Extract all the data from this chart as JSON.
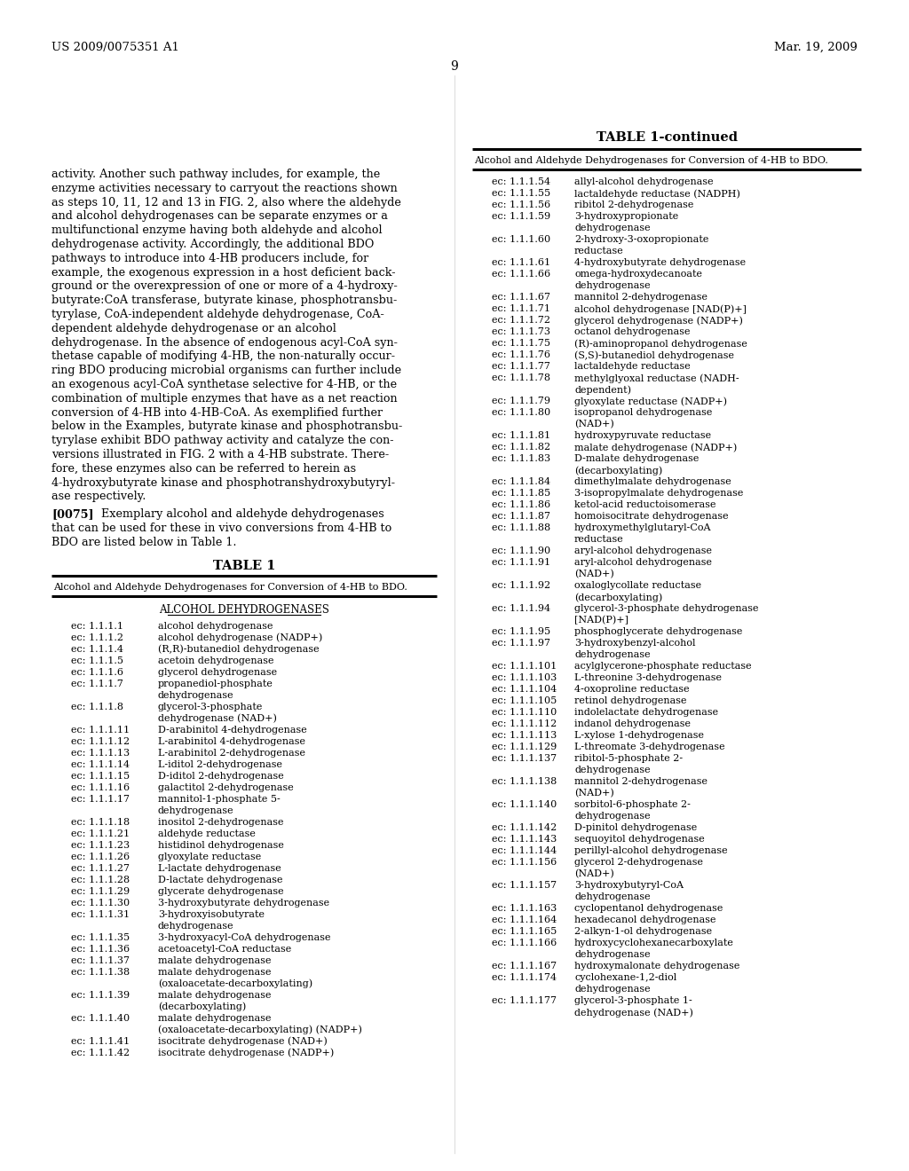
{
  "page_header_left": "US 2009/0075351 A1",
  "page_header_right": "Mar. 19, 2009",
  "page_number": "9",
  "body_text": [
    "activity. Another such pathway includes, for example, the",
    "enzyme activities necessary to carryout the reactions shown",
    "as steps 10, 11, 12 and 13 in FIG. 2, also where the aldehyde",
    "and alcohol dehydrogenases can be separate enzymes or a",
    "multifunctional enzyme having both aldehyde and alcohol",
    "dehydrogenase activity. Accordingly, the additional BDO",
    "pathways to introduce into 4-HB producers include, for",
    "example, the exogenous expression in a host deficient back-",
    "ground or the overexpression of one or more of a 4-hydroxy-",
    "butyrate:CoA transferase, butyrate kinase, phosphotransbu-",
    "tyrylase, CoA-independent aldehyde dehydrogenase, CoA-",
    "dependent aldehyde dehydrogenase or an alcohol",
    "dehydrogenase. In the absence of endogenous acyl-CoA syn-",
    "thetase capable of modifying 4-HB, the non-naturally occur-",
    "ring BDO producing microbial organisms can further include",
    "an exogenous acyl-CoA synthetase selective for 4-HB, or the",
    "combination of multiple enzymes that have as a net reaction",
    "conversion of 4-HB into 4-HB-CoA. As exemplified further",
    "below in the Examples, butyrate kinase and phosphotransbu-",
    "tyrylase exhibit BDO pathway activity and catalyze the con-",
    "versions illustrated in FIG. 2 with a 4-HB substrate. There-",
    "fore, these enzymes also can be referred to herein as",
    "4-hydroxybutyrate kinase and phosphotranshydroxybutyryl-",
    "ase respectively."
  ],
  "para_0075_lines": [
    "[0075]   Exemplary alcohol and aldehyde dehydrogenases",
    "that can be used for these in vivo conversions from 4-HB to",
    "BDO are listed below in Table 1."
  ],
  "table_title": "TABLE 1",
  "table_subtitle": "Alcohol and Aldehyde Dehydrogenases for Conversion of 4-HB to BDO.",
  "table_section_header": "ALCOHOL DEHYDROGENASES",
  "table_left_entries": [
    [
      "ec: 1.1.1.1",
      "alcohol dehydrogenase",
      false
    ],
    [
      "ec: 1.1.1.2",
      "alcohol dehydrogenase (NADP+)",
      false
    ],
    [
      "ec: 1.1.1.4",
      "(R,R)-butanediol dehydrogenase",
      false
    ],
    [
      "ec: 1.1.1.5",
      "acetoin dehydrogenase",
      false
    ],
    [
      "ec: 1.1.1.6",
      "glycerol dehydrogenase",
      false
    ],
    [
      "ec: 1.1.1.7",
      "propanediol-phosphate",
      true
    ],
    [
      "",
      "dehydrogenase",
      false
    ],
    [
      "ec: 1.1.1.8",
      "glycerol-3-phosphate",
      true
    ],
    [
      "",
      "dehydrogenase (NAD+)",
      false
    ],
    [
      "ec: 1.1.1.11",
      "D-arabinitol 4-dehydrogenase",
      false
    ],
    [
      "ec: 1.1.1.12",
      "L-arabinitol 4-dehydrogenase",
      false
    ],
    [
      "ec: 1.1.1.13",
      "L-arabinitol 2-dehydrogenase",
      false
    ],
    [
      "ec: 1.1.1.14",
      "L-iditol 2-dehydrogenase",
      false
    ],
    [
      "ec: 1.1.1.15",
      "D-iditol 2-dehydrogenase",
      false
    ],
    [
      "ec: 1.1.1.16",
      "galactitol 2-dehydrogenase",
      false
    ],
    [
      "ec: 1.1.1.17",
      "mannitol-1-phosphate 5-",
      true
    ],
    [
      "",
      "dehydrogenase",
      false
    ],
    [
      "ec: 1.1.1.18",
      "inositol 2-dehydrogenase",
      false
    ],
    [
      "ec: 1.1.1.21",
      "aldehyde reductase",
      false
    ],
    [
      "ec: 1.1.1.23",
      "histidinol dehydrogenase",
      false
    ],
    [
      "ec: 1.1.1.26",
      "glyoxylate reductase",
      false
    ],
    [
      "ec: 1.1.1.27",
      "L-lactate dehydrogenase",
      false
    ],
    [
      "ec: 1.1.1.28",
      "D-lactate dehydrogenase",
      false
    ],
    [
      "ec: 1.1.1.29",
      "glycerate dehydrogenase",
      false
    ],
    [
      "ec: 1.1.1.30",
      "3-hydroxybutyrate dehydrogenase",
      false
    ],
    [
      "ec: 1.1.1.31",
      "3-hydroxyisobutyrate",
      true
    ],
    [
      "",
      "dehydrogenase",
      false
    ],
    [
      "ec: 1.1.1.35",
      "3-hydroxyacyl-CoA dehydrogenase",
      false
    ],
    [
      "ec: 1.1.1.36",
      "acetoacetyl-CoA reductase",
      false
    ],
    [
      "ec: 1.1.1.37",
      "malate dehydrogenase",
      false
    ],
    [
      "ec: 1.1.1.38",
      "malate dehydrogenase",
      true
    ],
    [
      "",
      "(oxaloacetate-decarboxylating)",
      false
    ],
    [
      "ec: 1.1.1.39",
      "malate dehydrogenase",
      true
    ],
    [
      "",
      "(decarboxylating)",
      false
    ],
    [
      "ec: 1.1.1.40",
      "malate dehydrogenase",
      true
    ],
    [
      "",
      "(oxaloacetate-decarboxylating) (NADP+)",
      false
    ],
    [
      "ec: 1.1.1.41",
      "isocitrate dehydrogenase (NAD+)",
      false
    ],
    [
      "ec: 1.1.1.42",
      "isocitrate dehydrogenase (NADP+)",
      false
    ]
  ],
  "table_right_header": "TABLE 1-continued",
  "table_right_subtitle": "Alcohol and Aldehyde Dehydrogenases for Conversion of 4-HB to BDO.",
  "table_right_entries": [
    [
      "ec: 1.1.1.54",
      "allyl-alcohol dehydrogenase",
      false
    ],
    [
      "ec: 1.1.1.55",
      "lactaldehyde reductase (NADPH)",
      false
    ],
    [
      "ec: 1.1.1.56",
      "ribitol 2-dehydrogenase",
      false
    ],
    [
      "ec: 1.1.1.59",
      "3-hydroxypropionate",
      true
    ],
    [
      "",
      "dehydrogenase",
      false
    ],
    [
      "ec: 1.1.1.60",
      "2-hydroxy-3-oxopropionate",
      true
    ],
    [
      "",
      "reductase",
      false
    ],
    [
      "ec: 1.1.1.61",
      "4-hydroxybutyrate dehydrogenase",
      false
    ],
    [
      "ec: 1.1.1.66",
      "omega-hydroxydecanoate",
      true
    ],
    [
      "",
      "dehydrogenase",
      false
    ],
    [
      "ec: 1.1.1.67",
      "mannitol 2-dehydrogenase",
      false
    ],
    [
      "ec: 1.1.1.71",
      "alcohol dehydrogenase [NAD(P)+]",
      false
    ],
    [
      "ec: 1.1.1.72",
      "glycerol dehydrogenase (NADP+)",
      false
    ],
    [
      "ec: 1.1.1.73",
      "octanol dehydrogenase",
      false
    ],
    [
      "ec: 1.1.1.75",
      "(R)-aminopropanol dehydrogenase",
      false
    ],
    [
      "ec: 1.1.1.76",
      "(S,S)-butanediol dehydrogenase",
      false
    ],
    [
      "ec: 1.1.1.77",
      "lactaldehyde reductase",
      false
    ],
    [
      "ec: 1.1.1.78",
      "methylglyoxal reductase (NADH-",
      true
    ],
    [
      "",
      "dependent)",
      false
    ],
    [
      "ec: 1.1.1.79",
      "glyoxylate reductase (NADP+)",
      false
    ],
    [
      "ec: 1.1.1.80",
      "isopropanol dehydrogenase",
      true
    ],
    [
      "",
      "(NAD+)",
      false
    ],
    [
      "ec: 1.1.1.81",
      "hydroxypyruvate reductase",
      false
    ],
    [
      "ec: 1.1.1.82",
      "malate dehydrogenase (NADP+)",
      false
    ],
    [
      "ec: 1.1.1.83",
      "D-malate dehydrogenase",
      true
    ],
    [
      "",
      "(decarboxylating)",
      false
    ],
    [
      "ec: 1.1.1.84",
      "dimethylmalate dehydrogenase",
      false
    ],
    [
      "ec: 1.1.1.85",
      "3-isopropylmalate dehydrogenase",
      false
    ],
    [
      "ec: 1.1.1.86",
      "ketol-acid reductoisomerase",
      false
    ],
    [
      "ec: 1.1.1.87",
      "homoisocitrate dehydrogenase",
      false
    ],
    [
      "ec: 1.1.1.88",
      "hydroxymethylglutaryl-CoA",
      true
    ],
    [
      "",
      "reductase",
      false
    ],
    [
      "ec: 1.1.1.90",
      "aryl-alcohol dehydrogenase",
      false
    ],
    [
      "ec: 1.1.1.91",
      "aryl-alcohol dehydrogenase",
      true
    ],
    [
      "",
      "(NAD+)",
      false
    ],
    [
      "ec: 1.1.1.92",
      "oxaloglycollate reductase",
      true
    ],
    [
      "",
      "(decarboxylating)",
      false
    ],
    [
      "ec: 1.1.1.94",
      "glycerol-3-phosphate dehydrogenase",
      true
    ],
    [
      "",
      "[NAD(P)+]",
      false
    ],
    [
      "ec: 1.1.1.95",
      "phosphoglycerate dehydrogenase",
      false
    ],
    [
      "ec: 1.1.1.97",
      "3-hydroxybenzyl-alcohol",
      true
    ],
    [
      "",
      "dehydrogenase",
      false
    ],
    [
      "ec: 1.1.1.101",
      "acylglycerone-phosphate reductase",
      false
    ],
    [
      "ec: 1.1.1.103",
      "L-threonine 3-dehydrogenase",
      false
    ],
    [
      "ec: 1.1.1.104",
      "4-oxoproline reductase",
      false
    ],
    [
      "ec: 1.1.1.105",
      "retinol dehydrogenase",
      false
    ],
    [
      "ec: 1.1.1.110",
      "indolelactate dehydrogenase",
      false
    ],
    [
      "ec: 1.1.1.112",
      "indanol dehydrogenase",
      false
    ],
    [
      "ec: 1.1.1.113",
      "L-xylose 1-dehydrogenase",
      false
    ],
    [
      "ec: 1.1.1.129",
      "L-threomate 3-dehydrogenase",
      false
    ],
    [
      "ec: 1.1.1.137",
      "ribitol-5-phosphate 2-",
      true
    ],
    [
      "",
      "dehydrogenase",
      false
    ],
    [
      "ec: 1.1.1.138",
      "mannitol 2-dehydrogenase",
      true
    ],
    [
      "",
      "(NAD+)",
      false
    ],
    [
      "ec: 1.1.1.140",
      "sorbitol-6-phosphate 2-",
      true
    ],
    [
      "",
      "dehydrogenase",
      false
    ],
    [
      "ec: 1.1.1.142",
      "D-pinitol dehydrogenase",
      false
    ],
    [
      "ec: 1.1.1.143",
      "sequoyitol dehydrogenase",
      false
    ],
    [
      "ec: 1.1.1.144",
      "perillyl-alcohol dehydrogenase",
      false
    ],
    [
      "ec: 1.1.1.156",
      "glycerol 2-dehydrogenase",
      true
    ],
    [
      "",
      "(NAD+)",
      false
    ],
    [
      "ec: 1.1.1.157",
      "3-hydroxybutyryl-CoA",
      true
    ],
    [
      "",
      "dehydrogenase",
      false
    ],
    [
      "ec: 1.1.1.163",
      "cyclopentanol dehydrogenase",
      false
    ],
    [
      "ec: 1.1.1.164",
      "hexadecanol dehydrogenase",
      false
    ],
    [
      "ec: 1.1.1.165",
      "2-alkyn-1-ol dehydrogenase",
      false
    ],
    [
      "ec: 1.1.1.166",
      "hydroxycyclohexanecarboxylate",
      true
    ],
    [
      "",
      "dehydrogenase",
      false
    ],
    [
      "ec: 1.1.1.167",
      "hydroxymalonate dehydrogenase",
      false
    ],
    [
      "ec: 1.1.1.174",
      "cyclohexane-1,2-diol",
      true
    ],
    [
      "",
      "dehydrogenase",
      false
    ],
    [
      "ec: 1.1.1.177",
      "glycerol-3-phosphate 1-",
      true
    ],
    [
      "",
      "dehydrogenase (NAD+)",
      false
    ]
  ],
  "background_color": "#ffffff"
}
